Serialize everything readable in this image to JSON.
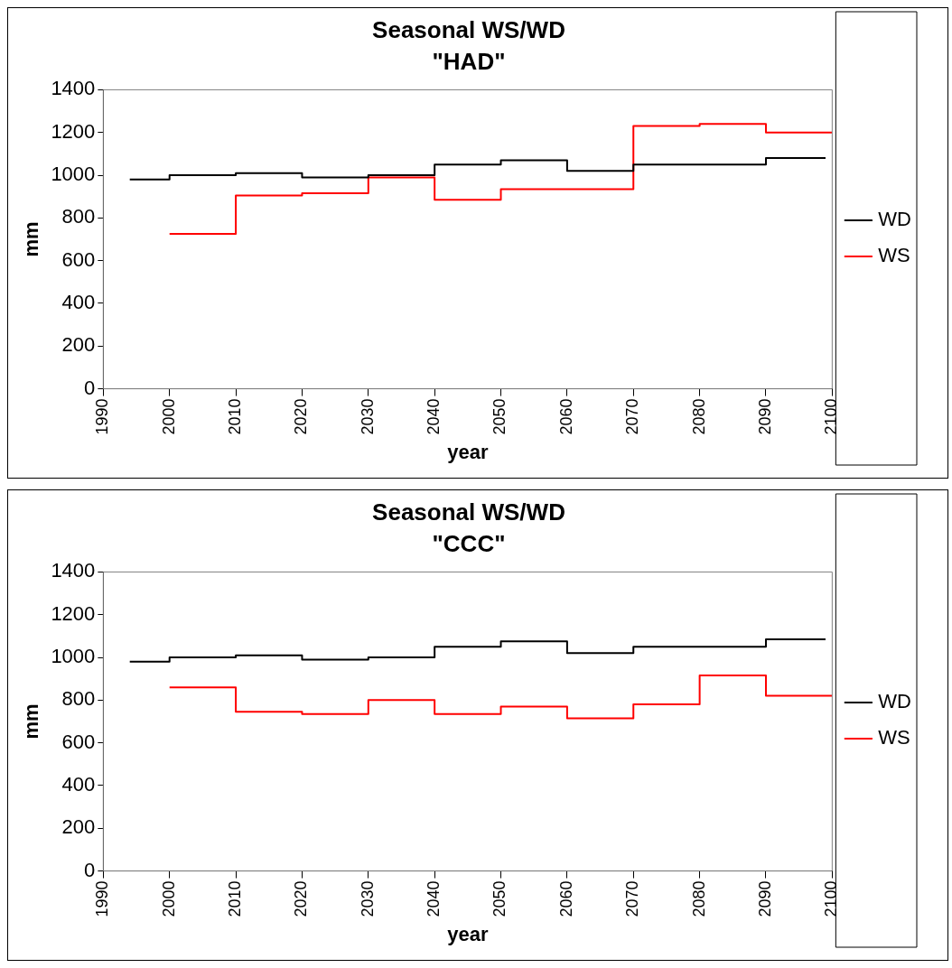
{
  "chart_data": [
    {
      "type": "step",
      "title": "Seasonal WS/WD",
      "subtitle": "\"HAD\"",
      "xlabel": "year",
      "ylabel": "mm",
      "xlim": [
        1990,
        2100
      ],
      "xticks": [
        1990,
        2000,
        2010,
        2020,
        2030,
        2040,
        2050,
        2060,
        2070,
        2080,
        2090,
        2100
      ],
      "ylim": [
        0,
        1400
      ],
      "yticks": [
        0,
        200,
        400,
        600,
        800,
        1000,
        1200,
        1400
      ],
      "grid": false,
      "legend": "right",
      "marker": "none",
      "series": [
        {
          "name": "WD",
          "color": "#000000",
          "x": [
            1994,
            2000,
            2010,
            2020,
            2030,
            2040,
            2050,
            2060,
            2070,
            2080,
            2090,
            2099
          ],
          "values": [
            980,
            1000,
            1010,
            990,
            1000,
            1050,
            1070,
            1020,
            1050,
            1050,
            1080,
            1080
          ]
        },
        {
          "name": "WS",
          "color": "#ff0000",
          "x": [
            2000,
            2010,
            2020,
            2030,
            2040,
            2050,
            2060,
            2070,
            2080,
            2090,
            2100
          ],
          "values": [
            725,
            905,
            915,
            990,
            885,
            935,
            935,
            1230,
            1240,
            1200,
            1200
          ]
        }
      ]
    },
    {
      "type": "step",
      "title": "Seasonal WS/WD",
      "subtitle": "\"CCC\"",
      "xlabel": "year",
      "ylabel": "mm",
      "xlim": [
        1990,
        2100
      ],
      "xticks": [
        1990,
        2000,
        2010,
        2020,
        2030,
        2040,
        2050,
        2060,
        2070,
        2080,
        2090,
        2100
      ],
      "ylim": [
        0,
        1400
      ],
      "yticks": [
        0,
        200,
        400,
        600,
        800,
        1000,
        1200,
        1400
      ],
      "grid": false,
      "legend": "right",
      "marker": "none",
      "series": [
        {
          "name": "WD",
          "color": "#000000",
          "x": [
            1994,
            2000,
            2010,
            2020,
            2030,
            2040,
            2050,
            2060,
            2070,
            2080,
            2090,
            2099
          ],
          "values": [
            980,
            1000,
            1010,
            990,
            1000,
            1050,
            1075,
            1020,
            1050,
            1050,
            1085,
            1085
          ]
        },
        {
          "name": "WS",
          "color": "#ff0000",
          "x": [
            2000,
            2010,
            2020,
            2030,
            2040,
            2050,
            2060,
            2070,
            2080,
            2090,
            2100
          ],
          "values": [
            860,
            745,
            735,
            800,
            735,
            770,
            715,
            780,
            915,
            820,
            820
          ]
        }
      ]
    }
  ]
}
